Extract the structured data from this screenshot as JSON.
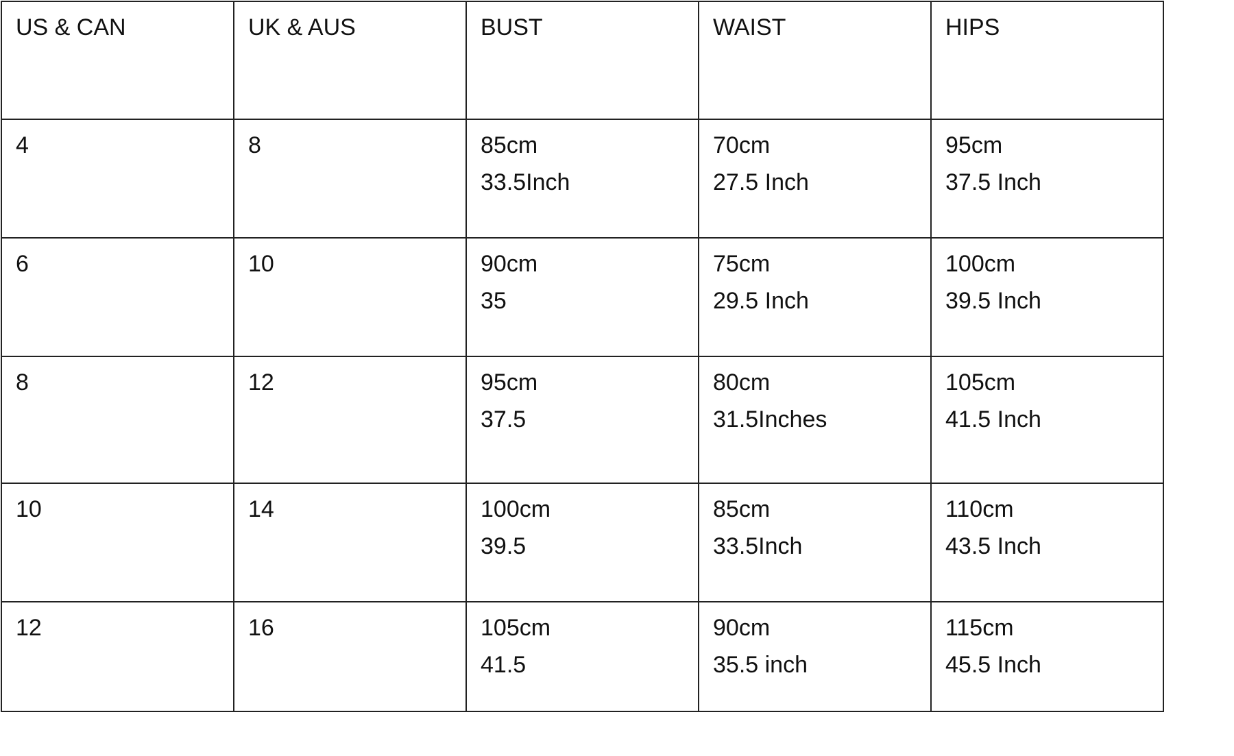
{
  "table": {
    "headers": [
      "US & CAN",
      "UK & AUS",
      "BUST",
      "WAIST",
      "HIPS"
    ],
    "rows": [
      {
        "us": "4",
        "uk": "8",
        "bust": [
          "85cm",
          "33.5Inch"
        ],
        "waist": [
          "70cm",
          "27.5 Inch"
        ],
        "hips": [
          "95cm",
          "37.5 Inch"
        ]
      },
      {
        "us": "6",
        "uk": "10",
        "bust": [
          "90cm",
          "35"
        ],
        "waist": [
          "75cm",
          "29.5 Inch"
        ],
        "hips": [
          "100cm",
          "39.5 Inch"
        ]
      },
      {
        "us": "8",
        "uk": "12",
        "bust": [
          "95cm",
          "37.5"
        ],
        "waist": [
          "80cm",
          "31.5Inches"
        ],
        "hips": [
          "105cm",
          "41.5 Inch"
        ]
      },
      {
        "us": "10",
        "uk": "14",
        "bust": [
          "100cm",
          "39.5"
        ],
        "waist": [
          "85cm",
          "33.5Inch"
        ],
        "hips": [
          "110cm",
          "43.5 Inch"
        ]
      },
      {
        "us": "12",
        "uk": "16",
        "bust": [
          "105cm",
          "41.5"
        ],
        "waist": [
          "90cm",
          "35.5 inch"
        ],
        "hips": [
          "115cm",
          "45.5 Inch"
        ]
      }
    ]
  }
}
